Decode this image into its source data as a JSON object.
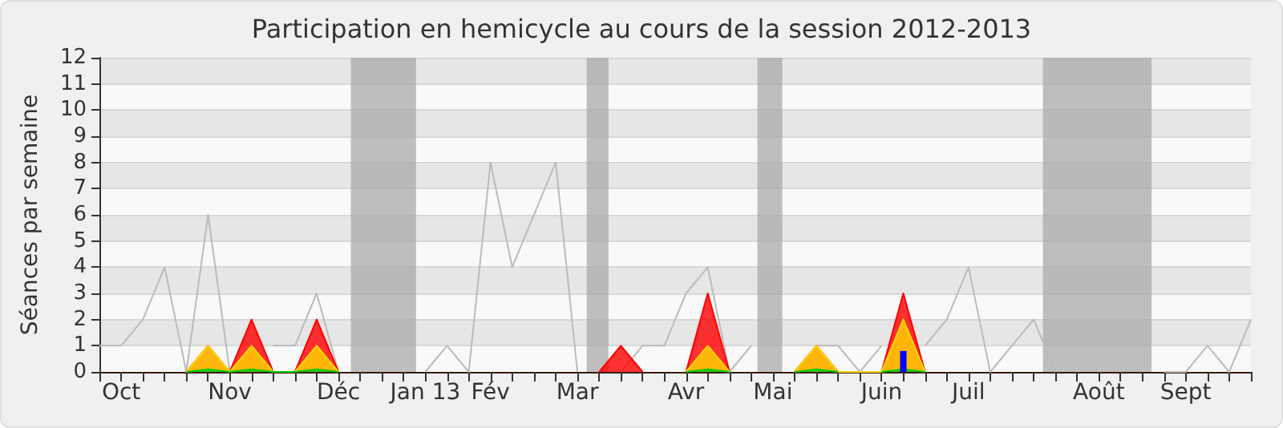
{
  "chart_data": {
    "type": "line",
    "title": "Participation en hemicycle au cours de la session 2012-2013",
    "ylabel": "Séances par semaine",
    "x": [
      "2012-09-30",
      "2012-10-07",
      "2012-10-14",
      "2012-10-21",
      "2012-10-28",
      "2012-11-04",
      "2012-11-11",
      "2012-11-18",
      "2012-11-25",
      "2012-12-02",
      "2012-12-09",
      "2012-12-16",
      "2012-12-23",
      "2012-12-30",
      "2013-01-06",
      "2013-01-13",
      "2013-01-20",
      "2013-01-27",
      "2013-02-03",
      "2013-02-10",
      "2013-02-17",
      "2013-02-24",
      "2013-03-03",
      "2013-03-10",
      "2013-03-17",
      "2013-03-24",
      "2013-03-31",
      "2013-04-07",
      "2013-04-14",
      "2013-04-21",
      "2013-04-28",
      "2013-05-05",
      "2013-05-12",
      "2013-05-19",
      "2013-05-26",
      "2013-06-02",
      "2013-06-09",
      "2013-06-16",
      "2013-06-23",
      "2013-06-30",
      "2013-07-07",
      "2013-07-14",
      "2013-07-21",
      "2013-07-28",
      "2013-08-04",
      "2013-08-11",
      "2013-08-18",
      "2013-08-25",
      "2013-09-01",
      "2013-09-08",
      "2013-09-15",
      "2013-09-22",
      "2013-09-29",
      "2013-10-06"
    ],
    "series": [
      {
        "color": "#bbbbbb",
        "values": [
          1,
          1,
          2,
          4,
          0,
          6,
          0,
          null,
          1,
          1,
          3,
          0,
          null,
          null,
          null,
          0,
          1,
          0,
          8,
          4,
          6,
          8,
          0,
          null,
          0,
          1,
          1,
          3,
          4,
          0,
          1,
          null,
          0,
          1,
          1,
          0,
          1,
          null,
          1,
          2,
          4,
          0,
          1,
          2,
          0,
          null,
          null,
          null,
          null,
          0,
          0,
          1,
          0,
          2
        ]
      },
      {
        "type": "area",
        "color": "#ff0000",
        "values": [
          null,
          null,
          null,
          null,
          0,
          1,
          0,
          2,
          0,
          0,
          2,
          0,
          null,
          null,
          null,
          null,
          null,
          null,
          null,
          null,
          null,
          null,
          null,
          0,
          1,
          0,
          null,
          0,
          3,
          0,
          null,
          null,
          0,
          1,
          0,
          null,
          0,
          3,
          0,
          null,
          null,
          null,
          null,
          null,
          null,
          null,
          null,
          null,
          null,
          null,
          null,
          null,
          null,
          null
        ]
      },
      {
        "type": "area",
        "color": "#ffd700",
        "values": [
          null,
          null,
          null,
          null,
          0,
          1,
          0,
          1,
          0,
          0,
          1,
          0,
          null,
          null,
          null,
          null,
          null,
          null,
          null,
          null,
          null,
          null,
          null,
          null,
          null,
          null,
          null,
          0,
          1,
          0,
          null,
          null,
          0,
          1,
          0,
          0,
          0,
          2,
          0,
          null,
          null,
          null,
          null,
          null,
          null,
          null,
          null,
          null,
          null,
          null,
          null,
          null,
          null,
          null
        ]
      },
      {
        "type": "area",
        "color": "#00cc00",
        "values": [
          null,
          null,
          null,
          null,
          0,
          0.1,
          0,
          0.1,
          0,
          0,
          0.1,
          0,
          null,
          null,
          null,
          null,
          null,
          null,
          null,
          null,
          null,
          null,
          null,
          null,
          null,
          null,
          null,
          0,
          0.1,
          0,
          null,
          null,
          0,
          0.1,
          0,
          null,
          0,
          0.1,
          0,
          null,
          null,
          null,
          null,
          null,
          null,
          null,
          null,
          null,
          null,
          null,
          null,
          null,
          null,
          null
        ]
      },
      {
        "type": "bar",
        "color": "#0000ff",
        "values": [
          null,
          null,
          null,
          null,
          null,
          null,
          null,
          null,
          null,
          null,
          null,
          null,
          null,
          null,
          null,
          null,
          null,
          null,
          null,
          null,
          null,
          null,
          null,
          null,
          null,
          null,
          null,
          null,
          null,
          null,
          null,
          null,
          null,
          null,
          null,
          null,
          null,
          0.8,
          null,
          null,
          null,
          null,
          null,
          null,
          null,
          null,
          null,
          null,
          null,
          null,
          null,
          null,
          null,
          null
        ]
      }
    ],
    "xlim": [
      "2012-09-30",
      "2013-10-06"
    ],
    "xticks": [
      {
        "value": "2012-09-30",
        "label": null
      },
      {
        "value": "2012-10-07",
        "label": "Oct"
      },
      {
        "value": "2012-10-14",
        "label": null
      },
      {
        "value": "2012-10-21",
        "label": null
      },
      {
        "value": "2012-10-28",
        "label": null
      },
      {
        "value": "2012-11-04",
        "label": null
      },
      {
        "value": "2012-11-11",
        "label": "Nov"
      },
      {
        "value": "2012-11-18",
        "label": null
      },
      {
        "value": "2012-11-25",
        "label": null
      },
      {
        "value": "2012-12-02",
        "label": null
      },
      {
        "value": "2012-12-09",
        "label": null
      },
      {
        "value": "2012-12-16",
        "label": "Déc"
      },
      {
        "value": "2012-12-23",
        "label": null
      },
      {
        "value": "2012-12-30",
        "label": null
      },
      {
        "value": "2013-01-06",
        "label": null
      },
      {
        "value": "2013-01-13",
        "label": "Jan 13"
      },
      {
        "value": "2013-01-20",
        "label": null
      },
      {
        "value": "2013-01-27",
        "label": null
      },
      {
        "value": "2013-02-03",
        "label": "Fév"
      },
      {
        "value": "2013-02-10",
        "label": null
      },
      {
        "value": "2013-02-17",
        "label": null
      },
      {
        "value": "2013-02-24",
        "label": null
      },
      {
        "value": "2013-03-03",
        "label": "Mar"
      },
      {
        "value": "2013-03-10",
        "label": null
      },
      {
        "value": "2013-03-17",
        "label": null
      },
      {
        "value": "2013-03-24",
        "label": null
      },
      {
        "value": "2013-03-31",
        "label": null
      },
      {
        "value": "2013-04-07",
        "label": "Avr"
      },
      {
        "value": "2013-04-14",
        "label": null
      },
      {
        "value": "2013-04-21",
        "label": null
      },
      {
        "value": "2013-04-28",
        "label": null
      },
      {
        "value": "2013-05-05",
        "label": "Mai"
      },
      {
        "value": "2013-05-12",
        "label": null
      },
      {
        "value": "2013-05-19",
        "label": null
      },
      {
        "value": "2013-05-26",
        "label": null
      },
      {
        "value": "2013-06-02",
        "label": null
      },
      {
        "value": "2013-06-09",
        "label": "Juin"
      },
      {
        "value": "2013-06-16",
        "label": null
      },
      {
        "value": "2013-06-23",
        "label": null
      },
      {
        "value": "2013-06-30",
        "label": null
      },
      {
        "value": "2013-07-07",
        "label": "Juil"
      },
      {
        "value": "2013-07-14",
        "label": null
      },
      {
        "value": "2013-07-21",
        "label": null
      },
      {
        "value": "2013-07-28",
        "label": null
      },
      {
        "value": "2013-08-04",
        "label": null
      },
      {
        "value": "2013-08-11",
        "label": null
      },
      {
        "value": "2013-08-18",
        "label": "Août"
      },
      {
        "value": "2013-08-25",
        "label": null
      },
      {
        "value": "2013-09-01",
        "label": null
      },
      {
        "value": "2013-09-08",
        "label": null
      },
      {
        "value": "2013-09-15",
        "label": "Sept"
      },
      {
        "value": "2013-09-22",
        "label": null
      },
      {
        "value": "2013-09-29",
        "label": null
      },
      {
        "value": "2013-10-06",
        "label": null
      }
    ],
    "ylim": [
      0,
      12
    ],
    "yticks": [
      0,
      1,
      2,
      3,
      4,
      5,
      6,
      7,
      8,
      9,
      10,
      11,
      12
    ],
    "bands": [
      {
        "axis": "x",
        "from": "2012-12-20",
        "to": "2013-01-10",
        "color": "#aaaaaa"
      },
      {
        "axis": "x",
        "from": "2013-03-06",
        "to": "2013-03-13",
        "color": "#aaaaaa"
      },
      {
        "axis": "x",
        "from": "2013-04-30",
        "to": "2013-05-08",
        "color": "#aaaaaa"
      },
      {
        "axis": "x",
        "from": "2013-07-31",
        "to": "2013-09-04",
        "color": "#aaaaaa"
      }
    ],
    "grid": "y",
    "marker": "none"
  }
}
